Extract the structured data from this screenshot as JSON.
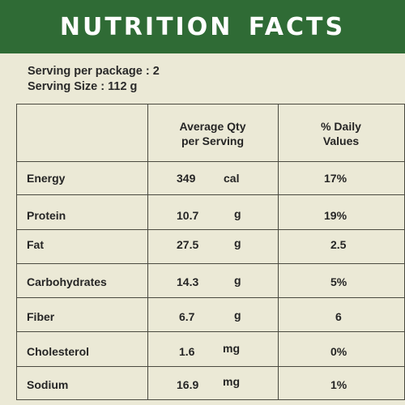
{
  "title": "NUTRITION FACTS",
  "serving": {
    "per_package": "Serving per package : 2",
    "size": "Serving Size : 112 g"
  },
  "columns": {
    "qty_line1": "Average Qty",
    "qty_line2": "per Serving",
    "daily_line1": "% Daily",
    "daily_line2": "Values"
  },
  "rows": [
    {
      "name": "Energy",
      "qty": "349",
      "unit": "cal",
      "daily": "17%"
    },
    {
      "name": "Protein",
      "qty": "10.7",
      "unit": "g",
      "daily": "19%"
    },
    {
      "name": "Fat",
      "qty": "27.5",
      "unit": "g",
      "daily": "2.5"
    },
    {
      "name": "Carbohydrates",
      "qty": "14.3",
      "unit": "g",
      "daily": "5%"
    },
    {
      "name": "Fiber",
      "qty": "6.7",
      "unit": "g",
      "daily": "6"
    },
    {
      "name": "Cholesterol",
      "qty": "1.6",
      "unit": "mg",
      "daily": "0%"
    },
    {
      "name": "Sodium",
      "qty": "16.9",
      "unit": "mg",
      "daily": "1%"
    }
  ],
  "colors": {
    "header_bg": "#2f6b35",
    "panel_bg": "#ebe9d6"
  }
}
